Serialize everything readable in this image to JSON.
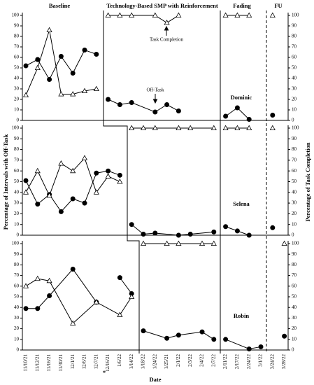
{
  "phases": [
    "Baseline",
    "Technology-Based SMP with Reinforcement",
    "Fading",
    "FU"
  ],
  "categories": [
    "11/10/21",
    "11/12/21",
    "11/16/21",
    "11/30/21",
    "12/1/21",
    "12/6/21",
    "12/7/21",
    "12/16/21",
    "1/6/22",
    "1/14/22",
    "1/18/22",
    "1/24/22",
    "1/25/21",
    "2/1/22",
    "2/3/22",
    "2/4/22",
    "2/7/22",
    "2/11/22",
    "2/17/22",
    "2/24/22",
    "3/1/22",
    "3/24/22",
    "3/28/22"
  ],
  "x_label": "Date",
  "y_label": "Percentage of Intervals with Off-Task",
  "y2_label": "Percentage of Task Completion",
  "date_note": "*",
  "chart_data": [
    {
      "type": "line",
      "title": "Dominic",
      "ylim": [
        0,
        100
      ],
      "yticks": [
        0,
        10,
        20,
        30,
        40,
        50,
        60,
        70,
        80,
        90,
        100
      ],
      "y2lim": [
        0,
        100
      ],
      "y2ticks": [
        0,
        10,
        20,
        30,
        40,
        50,
        60,
        70,
        80,
        90,
        100
      ],
      "annotations": [
        "Task Completion",
        "Off-Task"
      ],
      "series": [
        {
          "marker": "circle",
          "color": "#000000",
          "x": [
            "11/10/21",
            "11/12/21",
            "11/16/21",
            "11/30/21",
            "12/1/21",
            "12/6/21",
            "12/7/21"
          ],
          "values": [
            52,
            58,
            39,
            61,
            45,
            67,
            63
          ]
        },
        {
          "marker": "triangle",
          "color": "#000000",
          "axis": "y2",
          "x": [
            "11/10/21",
            "11/12/21",
            "11/16/21",
            "11/30/21",
            "12/1/21",
            "12/6/21",
            "12/7/21"
          ],
          "values": [
            24,
            50,
            86,
            25,
            25,
            28,
            30
          ]
        },
        {
          "marker": "circle",
          "color": "#000000",
          "x": [
            "12/16/21",
            "1/6/22",
            "1/14/22",
            "1/24/22",
            "1/25/21",
            "2/1/22"
          ],
          "values": [
            20,
            15,
            17,
            8,
            15,
            9
          ]
        },
        {
          "marker": "triangle",
          "color": "#000000",
          "axis": "y2",
          "x": [
            "12/16/21",
            "1/6/22",
            "1/14/22",
            "1/24/22",
            "1/25/21",
            "2/1/22"
          ],
          "values": [
            100,
            100,
            100,
            100,
            93,
            100
          ]
        },
        {
          "marker": "circle",
          "color": "#000000",
          "x": [
            "2/11/22",
            "2/17/22",
            "2/24/22"
          ],
          "values": [
            4,
            12,
            1
          ]
        },
        {
          "marker": "triangle",
          "color": "#000000",
          "axis": "y2",
          "x": [
            "2/11/22",
            "2/17/22",
            "2/24/22"
          ],
          "values": [
            100,
            100,
            100
          ]
        },
        {
          "marker": "circle",
          "color": "#000000",
          "x": [
            "3/24/22"
          ],
          "values": [
            5
          ]
        },
        {
          "marker": "triangle",
          "color": "#000000",
          "axis": "y2",
          "x": [
            "3/24/22"
          ],
          "values": [
            100
          ]
        }
      ]
    },
    {
      "type": "line",
      "title": "Selena",
      "ylim": [
        0,
        100
      ],
      "yticks": [
        0,
        10,
        20,
        30,
        40,
        50,
        60,
        70,
        80,
        90,
        100
      ],
      "y2lim": [
        0,
        100
      ],
      "y2ticks": [
        0,
        10,
        20,
        30,
        40,
        50,
        60,
        70,
        80,
        90,
        100
      ],
      "series": [
        {
          "marker": "circle",
          "color": "#000000",
          "x": [
            "11/10/21",
            "11/12/21",
            "11/16/21",
            "11/30/21",
            "12/1/21",
            "12/6/21",
            "12/7/21",
            "12/16/21",
            "1/6/22"
          ],
          "values": [
            51,
            29,
            38,
            22,
            34,
            30,
            58,
            60,
            56
          ]
        },
        {
          "marker": "triangle",
          "color": "#000000",
          "axis": "y2",
          "x": [
            "11/10/21",
            "11/12/21",
            "11/16/21",
            "11/30/21",
            "12/1/21",
            "12/6/21",
            "12/7/21",
            "12/16/21",
            "1/6/22"
          ],
          "values": [
            40,
            60,
            37,
            67,
            60,
            72,
            40,
            55,
            50
          ]
        },
        {
          "marker": "circle",
          "color": "#000000",
          "x": [
            "1/14/22",
            "1/18/22",
            "1/24/22",
            "2/1/22",
            "2/3/22",
            "2/7/22"
          ],
          "values": [
            10,
            1,
            2,
            0,
            1,
            3
          ]
        },
        {
          "marker": "triangle",
          "color": "#000000",
          "axis": "y2",
          "x": [
            "1/14/22",
            "1/18/22",
            "1/24/22",
            "2/1/22",
            "2/3/22",
            "2/7/22"
          ],
          "values": [
            100,
            100,
            100,
            100,
            100,
            100
          ]
        },
        {
          "marker": "circle",
          "color": "#000000",
          "x": [
            "2/11/22",
            "2/17/22",
            "2/24/22"
          ],
          "values": [
            8,
            4,
            0
          ]
        },
        {
          "marker": "triangle",
          "color": "#000000",
          "axis": "y2",
          "x": [
            "2/11/22",
            "2/17/22",
            "2/24/22"
          ],
          "values": [
            100,
            100,
            100
          ]
        },
        {
          "marker": "circle",
          "color": "#000000",
          "x": [
            "3/24/22"
          ],
          "values": [
            7
          ]
        },
        {
          "marker": "triangle",
          "color": "#000000",
          "axis": "y2",
          "x": [
            "3/24/22"
          ],
          "values": [
            100
          ]
        }
      ]
    },
    {
      "type": "line",
      "title": "Robin",
      "ylim": [
        0,
        100
      ],
      "yticks": [
        0,
        10,
        20,
        30,
        40,
        50,
        60,
        70,
        80,
        90,
        100
      ],
      "y2lim": [
        0,
        100
      ],
      "y2ticks": [
        0,
        10,
        20,
        30,
        40,
        50,
        60,
        70,
        80,
        90,
        100
      ],
      "series": [
        {
          "marker": "circle",
          "color": "#000000",
          "x": [
            "11/10/21",
            "11/12/21",
            "11/16/21",
            "12/1/21",
            "12/7/21",
            "12/16/21",
            "1/6/22",
            "1/14/22"
          ],
          "values": [
            39,
            39,
            51,
            76,
            45,
            null,
            68,
            53
          ]
        },
        {
          "marker": "triangle",
          "color": "#000000",
          "axis": "y2",
          "x": [
            "11/10/21",
            "11/12/21",
            "11/16/21",
            "12/1/21",
            "12/7/21",
            "1/6/22",
            "1/14/22"
          ],
          "values": [
            60,
            67,
            65,
            25,
            45,
            33,
            50
          ]
        },
        {
          "marker": "circle",
          "color": "#000000",
          "x": [
            "1/18/22",
            "1/25/21",
            "2/1/22",
            "2/4/22",
            "2/7/22"
          ],
          "values": [
            18,
            11,
            14,
            17,
            10
          ]
        },
        {
          "marker": "triangle",
          "color": "#000000",
          "axis": "y2",
          "x": [
            "1/18/22",
            "1/25/21",
            "2/1/22",
            "2/4/22",
            "2/7/22"
          ],
          "values": [
            100,
            100,
            100,
            100,
            100
          ]
        },
        {
          "marker": "circle",
          "color": "#000000",
          "x": [
            "2/11/22",
            "2/24/22",
            "3/1/22"
          ],
          "values": [
            10,
            1,
            3
          ]
        },
        {
          "marker": "circle",
          "color": "#000000",
          "x": [
            "3/28/22"
          ],
          "values": [
            13
          ]
        },
        {
          "marker": "triangle",
          "color": "#000000",
          "axis": "y2",
          "x": [
            "3/28/22"
          ],
          "values": [
            100
          ]
        }
      ]
    }
  ]
}
